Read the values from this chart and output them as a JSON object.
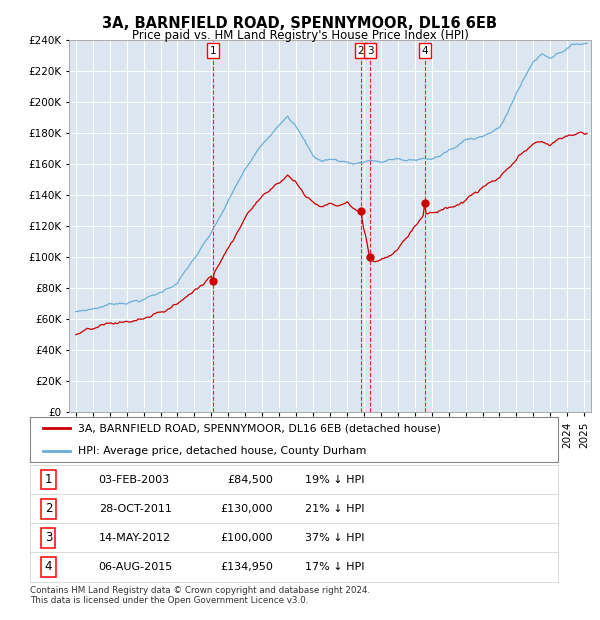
{
  "title1": "3A, BARNFIELD ROAD, SPENNYMOOR, DL16 6EB",
  "title2": "Price paid vs. HM Land Registry's House Price Index (HPI)",
  "plot_bg_color": "#dce6f1",
  "legend_line1": "3A, BARNFIELD ROAD, SPENNYMOOR, DL16 6EB (detached house)",
  "legend_line2": "HPI: Average price, detached house, County Durham",
  "red_color": "#cc0000",
  "blue_color": "#6baed6",
  "footer_text": "Contains HM Land Registry data © Crown copyright and database right 2024.\nThis data is licensed under the Open Government Licence v3.0.",
  "transactions": [
    {
      "label": "1",
      "date_dec": 2003.08,
      "price": 84500
    },
    {
      "label": "2",
      "date_dec": 2011.83,
      "price": 130000
    },
    {
      "label": "3",
      "date_dec": 2012.37,
      "price": 100000
    },
    {
      "label": "4",
      "date_dec": 2015.59,
      "price": 134950
    }
  ],
  "ylim": [
    0,
    240000
  ],
  "yticks": [
    0,
    20000,
    40000,
    60000,
    80000,
    100000,
    120000,
    140000,
    160000,
    180000,
    200000,
    220000,
    240000
  ],
  "xlim_start": 1994.6,
  "xlim_end": 2025.4,
  "table_rows": [
    [
      "1",
      "03-FEB-2003",
      "£84,500",
      "19% ↓ HPI"
    ],
    [
      "2",
      "28-OCT-2011",
      "£130,000",
      "21% ↓ HPI"
    ],
    [
      "3",
      "14-MAY-2012",
      "£100,000",
      "37% ↓ HPI"
    ],
    [
      "4",
      "06-AUG-2015",
      "£134,950",
      "17% ↓ HPI"
    ]
  ]
}
